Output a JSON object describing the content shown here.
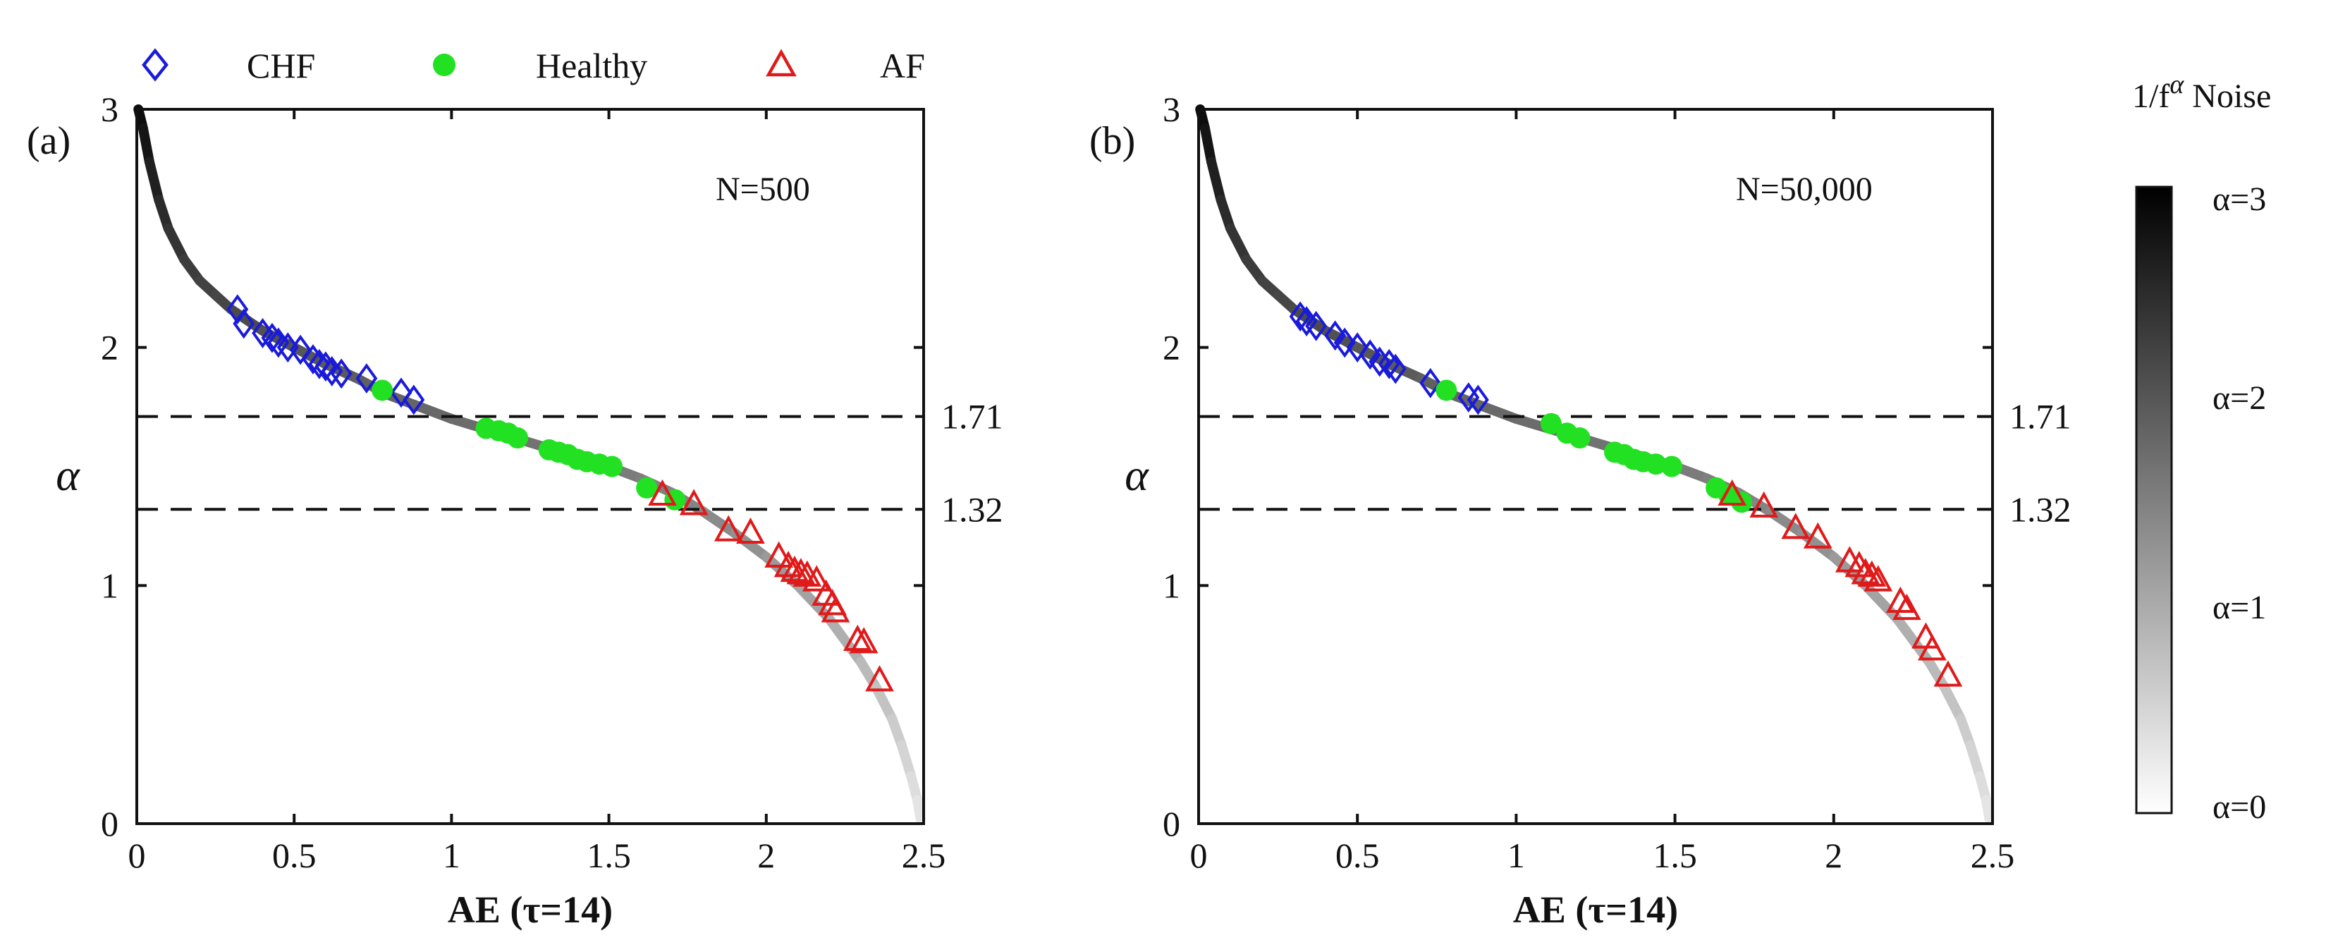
{
  "legend": {
    "items": [
      {
        "label": "CHF",
        "marker": "diamond",
        "color": "#1a1adb"
      },
      {
        "label": "Healthy",
        "marker": "circle",
        "color": "#22e022"
      },
      {
        "label": "AF",
        "marker": "triangle",
        "color": "#e01a1a"
      }
    ]
  },
  "colorbar": {
    "title_prefix": "1/f",
    "title_sup": "α",
    "title_suffix": " Noise",
    "labels": [
      "α=3",
      "α=2",
      "α=1",
      "α=0"
    ],
    "colormap": [
      "#ffffff",
      "#000000"
    ]
  },
  "chart_data": [
    {
      "type": "scatter",
      "panel_label": "(a)",
      "annotation": "N=500",
      "xlabel": "AE (τ=14)",
      "ylabel": "α",
      "xlim": [
        0,
        2.5
      ],
      "ylim": [
        0,
        3
      ],
      "xticks": [
        "0",
        "0.5",
        "1",
        "1.5",
        "2",
        "2.5"
      ],
      "yticks": [
        "0",
        "1",
        "2",
        "3"
      ],
      "reference_lines": [
        {
          "y": 1.71,
          "label": "1.71",
          "style": "dashed"
        },
        {
          "y": 1.32,
          "label": "1.32",
          "style": "dashed"
        }
      ],
      "noise_curve": {
        "name": "1/f^α Noise",
        "x": [
          0.005,
          0.02,
          0.04,
          0.07,
          0.1,
          0.15,
          0.2,
          0.25,
          0.3,
          0.4,
          0.5,
          0.6,
          0.7,
          0.8,
          0.9,
          1.0,
          1.1,
          1.2,
          1.3,
          1.4,
          1.5,
          1.6,
          1.7,
          1.8,
          1.9,
          2.0,
          2.1,
          2.2,
          2.3,
          2.35,
          2.4,
          2.43,
          2.46,
          2.48,
          2.49
        ],
        "y": [
          3.0,
          2.92,
          2.78,
          2.62,
          2.5,
          2.37,
          2.28,
          2.22,
          2.16,
          2.07,
          2.0,
          1.93,
          1.87,
          1.8,
          1.75,
          1.7,
          1.66,
          1.62,
          1.58,
          1.54,
          1.5,
          1.45,
          1.39,
          1.31,
          1.22,
          1.12,
          1.0,
          0.86,
          0.68,
          0.57,
          0.44,
          0.33,
          0.2,
          0.1,
          0.02
        ]
      },
      "series": [
        {
          "name": "CHF",
          "marker": "diamond",
          "x": [
            0.32,
            0.34,
            0.4,
            0.43,
            0.45,
            0.48,
            0.52,
            0.56,
            0.58,
            0.6,
            0.62,
            0.65,
            0.73,
            0.84,
            0.88
          ],
          "y": [
            2.16,
            2.1,
            2.06,
            2.04,
            2.02,
            2.0,
            1.99,
            1.95,
            1.93,
            1.92,
            1.9,
            1.89,
            1.87,
            1.81,
            1.78
          ]
        },
        {
          "name": "Healthy",
          "marker": "circle",
          "x": [
            0.78,
            1.11,
            1.15,
            1.18,
            1.21,
            1.31,
            1.34,
            1.37,
            1.4,
            1.43,
            1.47,
            1.51,
            1.62,
            1.71
          ],
          "y": [
            1.82,
            1.66,
            1.65,
            1.64,
            1.62,
            1.57,
            1.56,
            1.55,
            1.53,
            1.52,
            1.51,
            1.5,
            1.41,
            1.36
          ]
        },
        {
          "name": "AF",
          "marker": "triangle",
          "x": [
            1.67,
            1.77,
            1.88,
            1.95,
            2.04,
            2.07,
            2.09,
            2.11,
            2.13,
            2.16,
            2.19,
            2.21,
            2.22,
            2.29,
            2.31,
            2.36
          ],
          "y": [
            1.38,
            1.34,
            1.23,
            1.22,
            1.12,
            1.08,
            1.06,
            1.05,
            1.04,
            1.02,
            0.96,
            0.92,
            0.89,
            0.77,
            0.76,
            0.6
          ]
        }
      ]
    },
    {
      "type": "scatter",
      "panel_label": "(b)",
      "annotation": "N=50,000",
      "xlabel": "AE (τ=14)",
      "ylabel": "α",
      "xlim": [
        0,
        2.5
      ],
      "ylim": [
        0,
        3
      ],
      "xticks": [
        "0",
        "0.5",
        "1",
        "1.5",
        "2",
        "2.5"
      ],
      "yticks": [
        "0",
        "1",
        "2",
        "3"
      ],
      "reference_lines": [
        {
          "y": 1.71,
          "label": "1.71",
          "style": "dashed"
        },
        {
          "y": 1.32,
          "label": "1.32",
          "style": "dashed"
        }
      ],
      "noise_curve": {
        "name": "1/f^α Noise",
        "x": [
          0.005,
          0.02,
          0.04,
          0.07,
          0.1,
          0.15,
          0.2,
          0.25,
          0.3,
          0.4,
          0.5,
          0.6,
          0.7,
          0.8,
          0.9,
          1.0,
          1.1,
          1.2,
          1.3,
          1.4,
          1.5,
          1.6,
          1.7,
          1.8,
          1.9,
          2.0,
          2.1,
          2.2,
          2.3,
          2.35,
          2.4,
          2.43,
          2.46,
          2.48,
          2.49
        ],
        "y": [
          3.0,
          2.92,
          2.78,
          2.62,
          2.5,
          2.37,
          2.28,
          2.22,
          2.16,
          2.07,
          2.0,
          1.93,
          1.87,
          1.8,
          1.75,
          1.7,
          1.66,
          1.62,
          1.58,
          1.54,
          1.5,
          1.45,
          1.39,
          1.31,
          1.22,
          1.12,
          1.0,
          0.86,
          0.68,
          0.57,
          0.44,
          0.33,
          0.2,
          0.1,
          0.02
        ]
      },
      "series": [
        {
          "name": "CHF",
          "marker": "diamond",
          "x": [
            0.32,
            0.34,
            0.37,
            0.43,
            0.46,
            0.5,
            0.54,
            0.57,
            0.6,
            0.62,
            0.73,
            0.85,
            0.88
          ],
          "y": [
            2.13,
            2.11,
            2.09,
            2.05,
            2.02,
            2.0,
            1.97,
            1.94,
            1.93,
            1.91,
            1.85,
            1.79,
            1.78
          ]
        },
        {
          "name": "Healthy",
          "marker": "circle",
          "x": [
            0.78,
            1.11,
            1.16,
            1.2,
            1.31,
            1.34,
            1.37,
            1.4,
            1.44,
            1.49,
            1.63,
            1.67,
            1.71
          ],
          "y": [
            1.82,
            1.68,
            1.64,
            1.62,
            1.56,
            1.55,
            1.53,
            1.52,
            1.51,
            1.5,
            1.41,
            1.38,
            1.35
          ]
        },
        {
          "name": "AF",
          "marker": "triangle",
          "x": [
            1.68,
            1.78,
            1.88,
            1.95,
            2.05,
            2.08,
            2.1,
            2.12,
            2.14,
            2.21,
            2.23,
            2.29,
            2.31,
            2.36
          ],
          "y": [
            1.38,
            1.33,
            1.24,
            1.2,
            1.1,
            1.08,
            1.05,
            1.04,
            1.02,
            0.93,
            0.9,
            0.78,
            0.73,
            0.62
          ]
        }
      ]
    }
  ]
}
